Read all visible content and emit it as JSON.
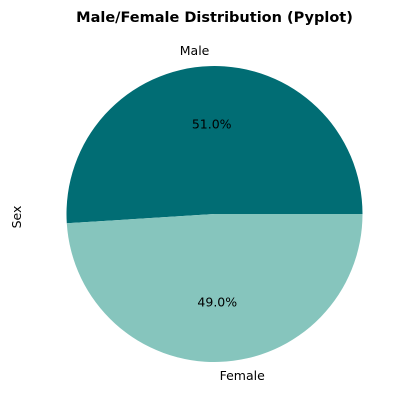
{
  "chart_data": {
    "type": "pie",
    "title": "Male/Female Distribution (Pyplot)",
    "ylabel": "Sex",
    "slices": [
      {
        "label": "Male",
        "value": 51.0,
        "pct_label": "51.0%",
        "color": "#016d74"
      },
      {
        "label": "Female",
        "value": 49.0,
        "pct_label": "49.0%",
        "color": "#86c5bd"
      }
    ],
    "start_angle_deg": 0,
    "direction": "counterclockwise"
  }
}
